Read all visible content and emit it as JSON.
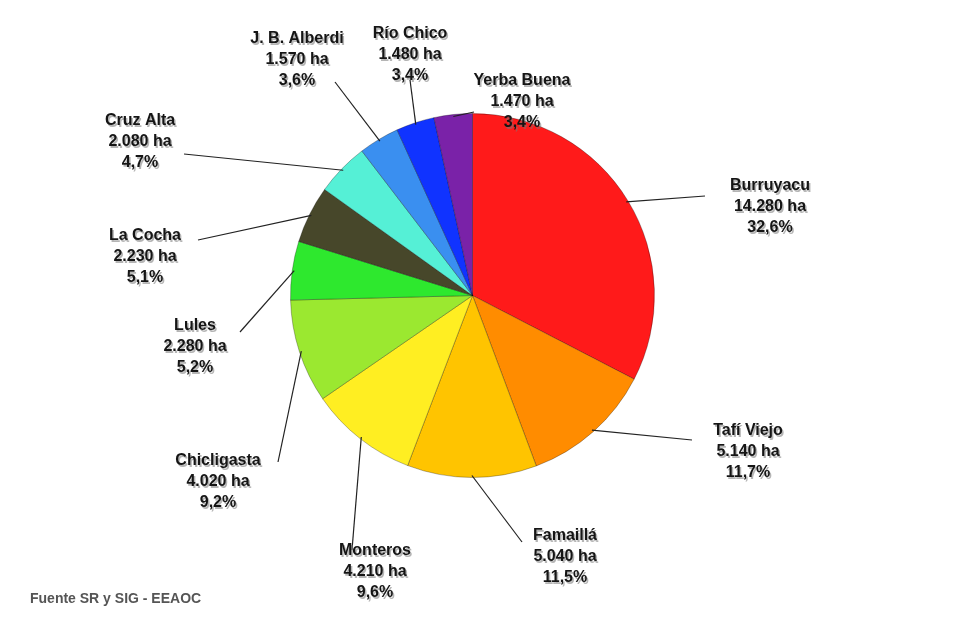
{
  "chart_data": {
    "type": "pie",
    "categories": [
      "Burruyacu",
      "Tafí Viejo",
      "Famaillá",
      "Monteros",
      "Chicligasta",
      "Lules",
      "La Cocha",
      "Cruz Alta",
      "J. B. Alberdi",
      "Río Chico",
      "Yerba Buena"
    ],
    "values": [
      32.6,
      11.7,
      11.5,
      9.6,
      9.2,
      5.2,
      5.1,
      4.7,
      3.6,
      3.4,
      3.4
    ],
    "value_labels": [
      "32,6%",
      "11,7%",
      "11,5%",
      "9,6%",
      "9,2%",
      "5,2%",
      "5,1%",
      "4,7%",
      "3,6%",
      "3,4%",
      "3,4%"
    ],
    "hectares": [
      14280,
      5140,
      5040,
      4210,
      4020,
      2280,
      2230,
      2080,
      1570,
      1480,
      1470
    ],
    "hectare_labels": [
      "14.280 ha",
      "5.140 ha",
      "5.040 ha",
      "4.210 ha",
      "4.020 ha",
      "2.280 ha",
      "2.230 ha",
      "2.080 ha",
      "1.570 ha",
      "1.480 ha",
      "1.470 ha"
    ],
    "colors": [
      "#ff1a1a",
      "#ff8c00",
      "#ffc400",
      "#ffee22",
      "#9be830",
      "#2ee82e",
      "#47472a",
      "#55f0d6",
      "#3a8ff0",
      "#1033ff",
      "#7a22a8"
    ],
    "data_labels": true,
    "source": "Fuente SR y SIG - EEAOC"
  }
}
